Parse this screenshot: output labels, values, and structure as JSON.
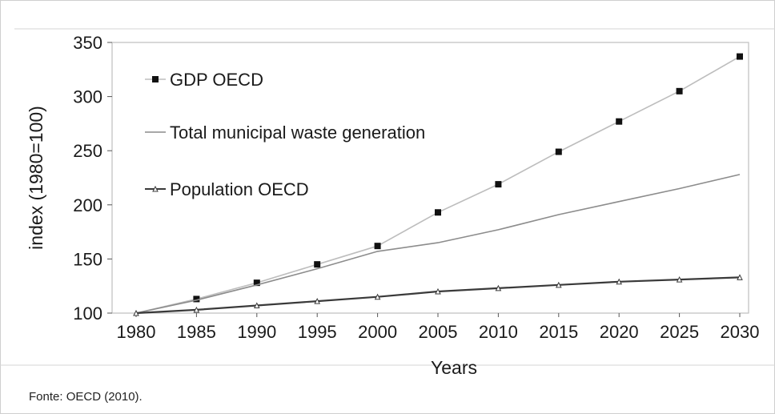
{
  "chart_data": {
    "type": "line",
    "title": "",
    "xlabel": "Years",
    "ylabel": "index (1980=100)",
    "x": [
      1980,
      1985,
      1990,
      1995,
      2000,
      2005,
      2010,
      2015,
      2020,
      2025,
      2030
    ],
    "xticks": [
      "1980",
      "1985",
      "1990",
      "1995",
      "2000",
      "2005",
      "2010",
      "2015",
      "2020",
      "2025",
      "2030"
    ],
    "yticks": [
      "100",
      "150",
      "200",
      "250",
      "300",
      "350"
    ],
    "ylim": [
      100,
      350
    ],
    "xlim": [
      1980,
      2030
    ],
    "grid": false,
    "legend_position": "top-left",
    "series": [
      {
        "name": "GDP OECD",
        "color": "#bdbdbd",
        "marker": "square",
        "values": [
          100,
          113,
          128,
          145,
          162,
          193,
          219,
          249,
          277,
          305,
          337
        ]
      },
      {
        "name": "Total municipal waste generation",
        "color": "#8c8c8c",
        "marker": "none",
        "values": [
          100,
          112,
          126,
          141,
          157,
          165,
          177,
          191,
          203,
          215,
          228
        ]
      },
      {
        "name": "Population OECD",
        "color": "#3a3a3a",
        "marker": "triangle",
        "values": [
          100,
          103,
          107,
          111,
          115,
          120,
          123,
          126,
          129,
          131,
          133
        ]
      }
    ]
  },
  "source": "Fonte: OECD (2010)."
}
